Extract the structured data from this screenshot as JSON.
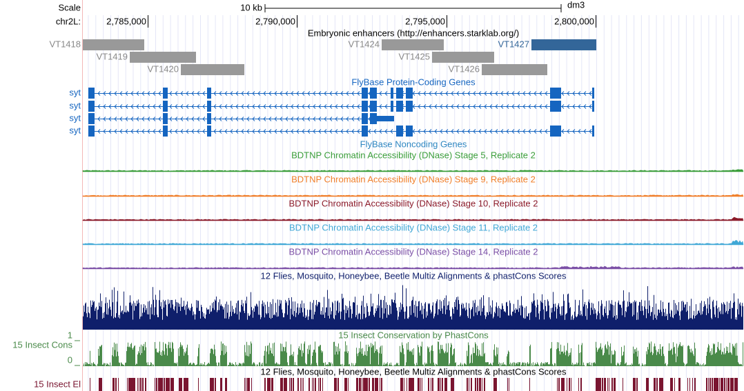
{
  "header": {
    "scale": "Scale",
    "scale_bar": "10 kb",
    "assembly": "dm3",
    "chrom": "chr2L:",
    "positions": [
      "2,785,000",
      "2,790,000",
      "2,795,000",
      "2,800,000"
    ]
  },
  "enhancers": {
    "title": "Embryonic enhancers (http://enhancers.starklab.org/)",
    "features": [
      "VT1418",
      "VT1419",
      "VT1420",
      "VT1424",
      "VT1425",
      "VT1426",
      "VT1427"
    ]
  },
  "genes": {
    "title": "FlyBase Protein-Coding Genes",
    "transcripts": [
      "syt",
      "syt",
      "syt",
      "syt"
    ]
  },
  "noncoding": {
    "title": "FlyBase Noncoding Genes"
  },
  "dnase": [
    "BDTNP Chromatin Accessibility (DNase) Stage 5, Replicate 2",
    "BDTNP Chromatin Accessibility (DNase) Stage 9, Replicate 2",
    "BDTNP Chromatin Accessibility (DNase) Stage 10, Replicate 2",
    "BDTNP Chromatin Accessibility (DNase) Stage 11, Replicate 2",
    "BDTNP Chromatin Accessibility (DNase) Stage 14, Replicate 2"
  ],
  "multiz": {
    "title": "12 Flies, Mosquito, Honeybee, Beetle Multiz Alignments & phastCons Scores"
  },
  "conservation": {
    "title": "15 Insect Conservation by PhastCons",
    "track_label": "15 Insect Cons",
    "ymax": 1,
    "ymin": 0
  },
  "elements": {
    "title": "12 Flies, Mosquito, Honeybee, Beetle Multiz Alignments & phastCons Scores",
    "track_label": "15 Insect El"
  }
}
